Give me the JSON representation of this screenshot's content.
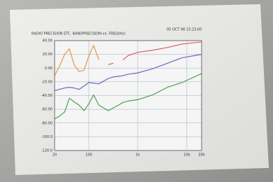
{
  "chart_data": {
    "type": "line",
    "title": "RADIO PRECISION ETC. BANDPRECISION vs. FREQ(Hz)",
    "subtitle": "05 OCT 96 15:23:00",
    "x": [
      20,
      25,
      32,
      40,
      50,
      63,
      80,
      100,
      125,
      160,
      250,
      315,
      400,
      500,
      630,
      1000,
      2000,
      4000,
      8000,
      20000
    ],
    "series": [
      {
        "color": "#e39a45",
        "values": [
          -11,
          2,
          20,
          28,
          5,
          -5,
          -3,
          18,
          33,
          12,
          null,
          null,
          null,
          null,
          null,
          null,
          null,
          null,
          null,
          null
        ]
      },
      {
        "color": "#d9606a",
        "values": [
          null,
          null,
          null,
          null,
          null,
          null,
          null,
          null,
          null,
          null,
          5,
          7,
          null,
          12,
          18,
          23,
          26,
          30,
          35,
          38
        ]
      },
      {
        "color": "#7462c2",
        "values": [
          -33,
          -31,
          -29,
          -28,
          -29,
          -31,
          -26,
          -21,
          -22,
          -23,
          -15,
          -13,
          -12,
          -11,
          -9,
          -7,
          -1,
          7,
          15,
          20
        ]
      },
      {
        "color": "#4f9e55",
        "values": [
          -74,
          -70,
          -64,
          -44,
          -49,
          -54,
          -62,
          -52,
          -39,
          -54,
          -62,
          -58,
          -54,
          -50,
          -48,
          -46,
          -39,
          -28,
          -21,
          -8
        ]
      }
    ],
    "xlog": true,
    "xlim": [
      20,
      20000
    ],
    "xticks": [
      20,
      100,
      {
        "value": 1000,
        "label": "1k"
      },
      {
        "value": 10000,
        "label": "10k"
      },
      {
        "value": 20000,
        "label": "20k"
      }
    ],
    "ylim": [
      -120,
      40
    ],
    "yticks": [
      {
        "value": 40,
        "label": "40.00"
      },
      {
        "value": 20,
        "label": "20.00"
      },
      {
        "value": 0,
        "label": "0.00"
      },
      {
        "value": -20,
        "label": "-20.00"
      },
      {
        "value": -40,
        "label": "-40.00"
      },
      {
        "value": -60,
        "label": "-60.00"
      },
      {
        "value": -80,
        "label": "-80.00"
      },
      {
        "value": -100,
        "label": "-100.0"
      },
      {
        "value": -120,
        "label": "-120.0"
      }
    ],
    "grid": true
  }
}
